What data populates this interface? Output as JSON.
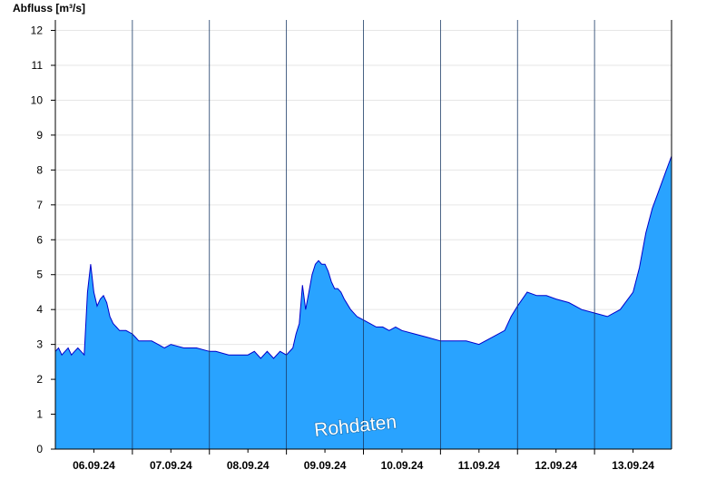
{
  "chart_data": {
    "type": "area",
    "ylabel": "Abfluss [m³/s]",
    "ylim": [
      0,
      12.3
    ],
    "yticks": [
      0,
      1,
      2,
      3,
      4,
      5,
      6,
      7,
      8,
      9,
      10,
      11,
      12
    ],
    "xlim": [
      "2024-09-05T12:00",
      "2024-09-13T12:00"
    ],
    "xticks": [
      {
        "label": "06.09.24",
        "date": "2024-09-06T00:00"
      },
      {
        "label": "07.09.24",
        "date": "2024-09-07T00:00"
      },
      {
        "label": "08.09.24",
        "date": "2024-09-08T00:00"
      },
      {
        "label": "09.09.24",
        "date": "2024-09-09T00:00"
      },
      {
        "label": "10.09.24",
        "date": "2024-09-10T00:00"
      },
      {
        "label": "11.09.24",
        "date": "2024-09-11T00:00"
      },
      {
        "label": "12.09.24",
        "date": "2024-09-12T00:00"
      },
      {
        "label": "13.09.24",
        "date": "2024-09-13T00:00"
      }
    ],
    "day_boundaries": [
      "2024-09-06T12:00",
      "2024-09-07T12:00",
      "2024-09-08T12:00",
      "2024-09-09T12:00",
      "2024-09-10T12:00",
      "2024-09-11T12:00",
      "2024-09-12T12:00"
    ],
    "grid": "horizontal",
    "fill_color": "#29a3ff",
    "line_color": "#0000cc",
    "watermark": "Rohdaten",
    "series": [
      {
        "x": [
          "2024-09-05T12:00",
          "2024-09-05T13:00",
          "2024-09-05T14:00",
          "2024-09-05T15:00",
          "2024-09-05T16:00",
          "2024-09-05T17:00",
          "2024-09-05T18:00",
          "2024-09-05T19:00",
          "2024-09-05T20:00",
          "2024-09-05T21:00",
          "2024-09-05T22:00",
          "2024-09-05T23:00",
          "2024-09-06T00:00",
          "2024-09-06T01:00",
          "2024-09-06T02:00",
          "2024-09-06T03:00",
          "2024-09-06T04:00",
          "2024-09-06T05:00",
          "2024-09-06T06:00",
          "2024-09-06T07:00",
          "2024-09-06T08:00",
          "2024-09-06T10:00",
          "2024-09-06T12:00",
          "2024-09-06T13:00",
          "2024-09-06T14:00",
          "2024-09-06T16:00",
          "2024-09-06T18:00",
          "2024-09-06T20:00",
          "2024-09-06T22:00",
          "2024-09-07T00:00",
          "2024-09-07T04:00",
          "2024-09-07T08:00",
          "2024-09-07T12:00",
          "2024-09-07T14:00",
          "2024-09-07T18:00",
          "2024-09-07T21:00",
          "2024-09-08T00:00",
          "2024-09-08T02:00",
          "2024-09-08T04:00",
          "2024-09-08T06:00",
          "2024-09-08T08:00",
          "2024-09-08T10:00",
          "2024-09-08T12:00",
          "2024-09-08T14:00",
          "2024-09-08T15:00",
          "2024-09-08T16:00",
          "2024-09-08T17:00",
          "2024-09-08T18:00",
          "2024-09-08T19:00",
          "2024-09-08T20:00",
          "2024-09-08T21:00",
          "2024-09-08T22:00",
          "2024-09-08T23:00",
          "2024-09-09T00:00",
          "2024-09-09T01:00",
          "2024-09-09T02:00",
          "2024-09-09T03:00",
          "2024-09-09T04:00",
          "2024-09-09T05:00",
          "2024-09-09T06:00",
          "2024-09-09T08:00",
          "2024-09-09T10:00",
          "2024-09-09T12:00",
          "2024-09-09T14:00",
          "2024-09-09T16:00",
          "2024-09-09T18:00",
          "2024-09-09T20:00",
          "2024-09-09T22:00",
          "2024-09-10T00:00",
          "2024-09-10T04:00",
          "2024-09-10T08:00",
          "2024-09-10T12:00",
          "2024-09-10T16:00",
          "2024-09-10T20:00",
          "2024-09-11T00:00",
          "2024-09-11T04:00",
          "2024-09-11T08:00",
          "2024-09-11T10:00",
          "2024-09-11T12:00",
          "2024-09-11T15:00",
          "2024-09-11T18:00",
          "2024-09-11T21:00",
          "2024-09-12T00:00",
          "2024-09-12T04:00",
          "2024-09-12T08:00",
          "2024-09-12T12:00",
          "2024-09-12T16:00",
          "2024-09-12T20:00",
          "2024-09-13T00:00",
          "2024-09-13T02:00",
          "2024-09-13T04:00",
          "2024-09-13T06:00",
          "2024-09-13T08:00",
          "2024-09-13T10:00",
          "2024-09-13T12:00"
        ],
        "y": [
          2.8,
          2.9,
          2.7,
          2.8,
          2.9,
          2.7,
          2.8,
          2.9,
          2.8,
          2.7,
          4.5,
          5.3,
          4.5,
          4.1,
          4.3,
          4.4,
          4.2,
          3.8,
          3.6,
          3.5,
          3.4,
          3.4,
          3.3,
          3.2,
          3.1,
          3.1,
          3.1,
          3.0,
          2.9,
          3.0,
          2.9,
          2.9,
          2.8,
          2.8,
          2.7,
          2.7,
          2.7,
          2.8,
          2.6,
          2.8,
          2.6,
          2.8,
          2.7,
          2.9,
          3.3,
          3.6,
          4.7,
          4.0,
          4.5,
          5.0,
          5.3,
          5.4,
          5.3,
          5.3,
          5.1,
          4.8,
          4.6,
          4.6,
          4.5,
          4.3,
          4.0,
          3.8,
          3.7,
          3.6,
          3.5,
          3.5,
          3.4,
          3.5,
          3.4,
          3.3,
          3.2,
          3.1,
          3.1,
          3.1,
          3.0,
          3.2,
          3.4,
          3.8,
          4.1,
          4.5,
          4.4,
          4.4,
          4.3,
          4.2,
          4.0,
          3.9,
          3.8,
          4.0,
          4.5,
          5.2,
          6.2,
          6.9,
          7.4,
          7.9,
          8.4
        ]
      }
    ]
  }
}
